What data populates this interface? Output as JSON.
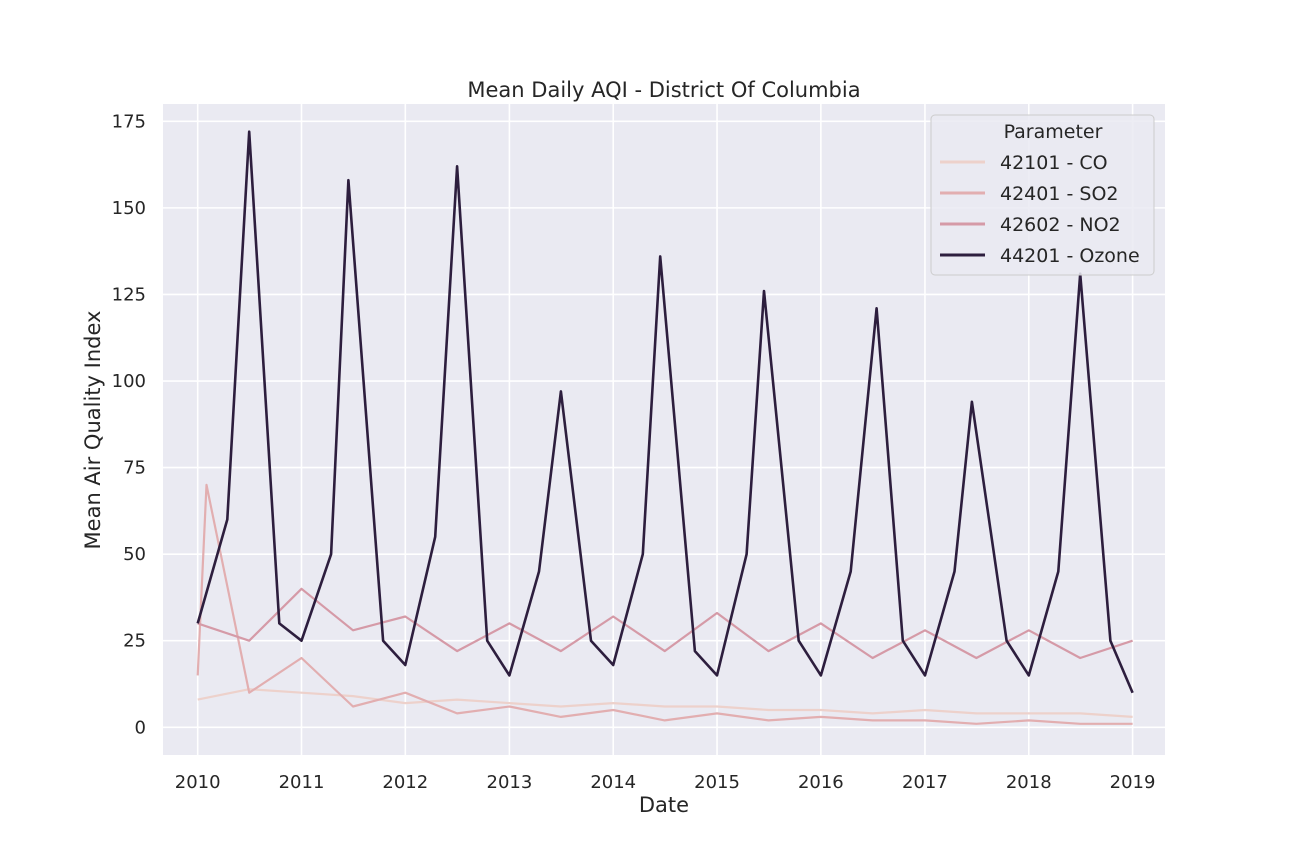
{
  "chart_data": {
    "type": "line",
    "title": "Mean Daily AQI - District Of Columbia",
    "xlabel": "Date",
    "ylabel": "Mean Air Quality Index",
    "xlim": [
      "2009-09-01",
      "2019-04-25"
    ],
    "ylim": [
      -8,
      180
    ],
    "x_ticks": [
      "2010",
      "2011",
      "2012",
      "2013",
      "2014",
      "2015",
      "2016",
      "2017",
      "2018",
      "2019"
    ],
    "y_ticks": [
      0,
      25,
      50,
      75,
      100,
      125,
      150,
      175
    ],
    "grid": true,
    "legend": {
      "title": "Parameter",
      "position": "top-right"
    },
    "colors": {
      "background": "#eaeaf2",
      "grid": "#ffffff"
    },
    "series": [
      {
        "name": "42101 - CO",
        "color": "#edd1cb",
        "points": [
          [
            "2010-01-01",
            8
          ],
          [
            "2010-07-01",
            11
          ],
          [
            "2011-01-01",
            10
          ],
          [
            "2011-07-01",
            9
          ],
          [
            "2012-01-01",
            7
          ],
          [
            "2012-07-01",
            8
          ],
          [
            "2013-01-01",
            7
          ],
          [
            "2013-07-01",
            6
          ],
          [
            "2014-01-01",
            7
          ],
          [
            "2014-07-01",
            6
          ],
          [
            "2015-01-01",
            6
          ],
          [
            "2015-07-01",
            5
          ],
          [
            "2016-01-01",
            5
          ],
          [
            "2016-07-01",
            4
          ],
          [
            "2017-01-01",
            5
          ],
          [
            "2017-07-01",
            4
          ],
          [
            "2018-01-01",
            4
          ],
          [
            "2018-07-01",
            4
          ],
          [
            "2019-01-01",
            3
          ]
        ]
      },
      {
        "name": "42401 - SO2",
        "color": "#e2aeb0",
        "points": [
          [
            "2010-01-01",
            15
          ],
          [
            "2010-02-01",
            70
          ],
          [
            "2010-07-01",
            10
          ],
          [
            "2011-01-01",
            20
          ],
          [
            "2011-07-01",
            6
          ],
          [
            "2012-01-01",
            10
          ],
          [
            "2012-07-01",
            4
          ],
          [
            "2013-01-01",
            6
          ],
          [
            "2013-07-01",
            3
          ],
          [
            "2014-01-01",
            5
          ],
          [
            "2014-07-01",
            2
          ],
          [
            "2015-01-01",
            4
          ],
          [
            "2015-07-01",
            2
          ],
          [
            "2016-01-01",
            3
          ],
          [
            "2016-07-01",
            2
          ],
          [
            "2017-01-01",
            2
          ],
          [
            "2017-07-01",
            1
          ],
          [
            "2018-01-01",
            2
          ],
          [
            "2018-07-01",
            1
          ],
          [
            "2019-01-01",
            1
          ]
        ]
      },
      {
        "name": "42602 - NO2",
        "color": "#d59aa7",
        "points": [
          [
            "2010-01-01",
            30
          ],
          [
            "2010-07-01",
            25
          ],
          [
            "2011-01-01",
            40
          ],
          [
            "2011-07-01",
            28
          ],
          [
            "2012-01-01",
            32
          ],
          [
            "2012-07-01",
            22
          ],
          [
            "2013-01-01",
            30
          ],
          [
            "2013-07-01",
            22
          ],
          [
            "2014-01-01",
            32
          ],
          [
            "2014-07-01",
            22
          ],
          [
            "2015-01-01",
            33
          ],
          [
            "2015-07-01",
            22
          ],
          [
            "2016-01-01",
            30
          ],
          [
            "2016-07-01",
            20
          ],
          [
            "2017-01-01",
            28
          ],
          [
            "2017-07-01",
            20
          ],
          [
            "2018-01-01",
            28
          ],
          [
            "2018-07-01",
            20
          ],
          [
            "2019-01-01",
            25
          ]
        ]
      },
      {
        "name": "44201 - Ozone",
        "color": "#2d1e3e",
        "points": [
          [
            "2010-01-01",
            30
          ],
          [
            "2010-04-15",
            60
          ],
          [
            "2010-07-01",
            172
          ],
          [
            "2010-10-15",
            30
          ],
          [
            "2011-01-01",
            25
          ],
          [
            "2011-04-15",
            50
          ],
          [
            "2011-06-15",
            158
          ],
          [
            "2011-10-15",
            25
          ],
          [
            "2012-01-01",
            18
          ],
          [
            "2012-04-15",
            55
          ],
          [
            "2012-07-01",
            162
          ],
          [
            "2012-10-15",
            25
          ],
          [
            "2013-01-01",
            15
          ],
          [
            "2013-04-15",
            45
          ],
          [
            "2013-07-01",
            97
          ],
          [
            "2013-10-15",
            25
          ],
          [
            "2014-01-01",
            18
          ],
          [
            "2014-04-15",
            50
          ],
          [
            "2014-06-15",
            136
          ],
          [
            "2014-10-15",
            22
          ],
          [
            "2015-01-01",
            15
          ],
          [
            "2015-04-15",
            50
          ],
          [
            "2015-06-15",
            126
          ],
          [
            "2015-10-15",
            25
          ],
          [
            "2016-01-01",
            15
          ],
          [
            "2016-04-15",
            45
          ],
          [
            "2016-07-15",
            121
          ],
          [
            "2016-10-15",
            25
          ],
          [
            "2017-01-01",
            15
          ],
          [
            "2017-04-15",
            45
          ],
          [
            "2017-06-15",
            94
          ],
          [
            "2017-10-15",
            25
          ],
          [
            "2018-01-01",
            15
          ],
          [
            "2018-04-15",
            45
          ],
          [
            "2018-07-01",
            131
          ],
          [
            "2018-10-15",
            25
          ],
          [
            "2019-01-01",
            10
          ]
        ]
      }
    ]
  }
}
